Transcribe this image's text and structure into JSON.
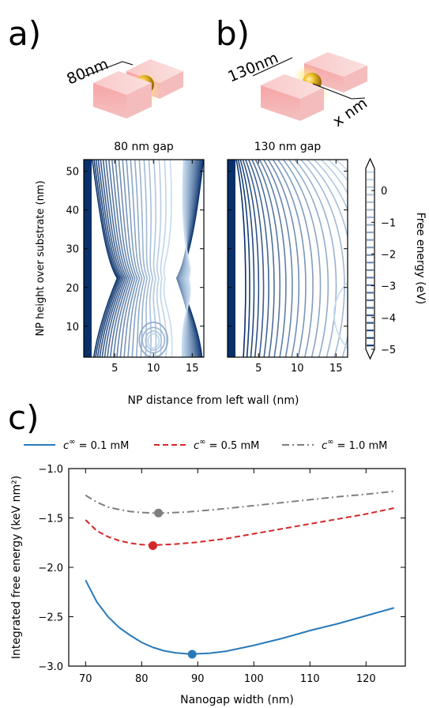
{
  "panels": {
    "a": {
      "letter": "a)",
      "dim_label": "80nm",
      "title": "80 nm gap"
    },
    "b": {
      "letter": "b)",
      "dim_label": "130nm",
      "x_label": "x nm",
      "title": "130 nm gap"
    },
    "c": {
      "letter": "c)"
    }
  },
  "top_axes": {
    "ylabel": "NP height over substrate (nm)",
    "xlabel": "NP distance from left wall (nm)",
    "x_ticks": [
      "5",
      "10",
      "15"
    ],
    "y_ticks": [
      "10",
      "20",
      "30",
      "40",
      "50"
    ]
  },
  "colorbar": {
    "label": "Free energy (eV)",
    "ticks": [
      "0",
      "−1",
      "−2",
      "−3",
      "−4",
      "−5"
    ]
  },
  "colors": {
    "series_0_1": "#2a7ab9",
    "series_0_5": "#d62728",
    "series_1_0": "#7f7f7f",
    "contour_dark": "#08306b",
    "contour_light": "#c6dbef"
  },
  "chart_data": [
    {
      "type": "heatmap",
      "title": "80 nm gap",
      "xlabel": "NP distance from left wall (nm)",
      "ylabel": "NP height over substrate (nm)",
      "xlim": [
        1,
        16.5
      ],
      "ylim": [
        2,
        53
      ],
      "zlim": [
        -5,
        0.7
      ],
      "colorbar_label": "Free energy (eV)"
    },
    {
      "type": "heatmap",
      "title": "130 nm gap",
      "xlabel": "NP distance from left wall (nm)",
      "xlim": [
        1,
        16.5
      ],
      "ylim": [
        2,
        53
      ],
      "zlim": [
        -5,
        0.7
      ],
      "colorbar_label": "Free energy (eV)"
    },
    {
      "type": "line",
      "xlabel": "Nanogap width (nm)",
      "ylabel": "Integrated free energy (keV nm²)",
      "xlim": [
        67,
        127
      ],
      "ylim": [
        -3.0,
        -1.0
      ],
      "x_ticks": [
        70,
        80,
        90,
        100,
        110,
        120
      ],
      "y_ticks": [
        -3.0,
        -2.5,
        -2.0,
        -1.5,
        -1.0
      ],
      "x_tick_labels": [
        "70",
        "80",
        "90",
        "100",
        "110",
        "120"
      ],
      "y_tick_labels": [
        "−3.0",
        "−2.5",
        "−2.0",
        "−1.5",
        "−1.0"
      ],
      "legend_position": "top",
      "series": [
        {
          "name": "c∞ = 0.1 mM",
          "legend_prefix": "c",
          "legend_sup": "∞",
          "legend_suffix": " = 0.1 mM",
          "style": "solid",
          "x": [
            70,
            72,
            74,
            76,
            78,
            80,
            82,
            84,
            86,
            88,
            90,
            92,
            95,
            100,
            105,
            110,
            115,
            120,
            125
          ],
          "y": [
            -2.13,
            -2.35,
            -2.5,
            -2.61,
            -2.69,
            -2.76,
            -2.81,
            -2.845,
            -2.865,
            -2.875,
            -2.875,
            -2.87,
            -2.85,
            -2.79,
            -2.72,
            -2.64,
            -2.57,
            -2.49,
            -2.41
          ],
          "min_point": [
            89,
            -2.88
          ]
        },
        {
          "name": "c∞ = 0.5 mM",
          "legend_prefix": "c",
          "legend_sup": "∞",
          "legend_suffix": " = 0.5 mM",
          "style": "dashed",
          "x": [
            70,
            72,
            74,
            76,
            78,
            80,
            82,
            84,
            86,
            88,
            90,
            95,
            100,
            105,
            110,
            115,
            120,
            125
          ],
          "y": [
            -1.52,
            -1.63,
            -1.69,
            -1.73,
            -1.755,
            -1.77,
            -1.775,
            -1.77,
            -1.765,
            -1.755,
            -1.745,
            -1.71,
            -1.66,
            -1.61,
            -1.56,
            -1.51,
            -1.46,
            -1.4
          ],
          "min_point": [
            82,
            -1.78
          ]
        },
        {
          "name": "c∞ = 1.0 mM",
          "legend_prefix": "c",
          "legend_sup": "∞",
          "legend_suffix": " = 1.0 mM",
          "style": "dashdot",
          "x": [
            70,
            72,
            74,
            76,
            78,
            80,
            82,
            84,
            86,
            88,
            90,
            95,
            100,
            105,
            110,
            115,
            120,
            125
          ],
          "y": [
            -1.27,
            -1.34,
            -1.39,
            -1.415,
            -1.435,
            -1.445,
            -1.45,
            -1.45,
            -1.445,
            -1.44,
            -1.43,
            -1.405,
            -1.375,
            -1.345,
            -1.315,
            -1.285,
            -1.26,
            -1.23
          ],
          "min_point": [
            83,
            -1.45
          ]
        }
      ]
    }
  ]
}
